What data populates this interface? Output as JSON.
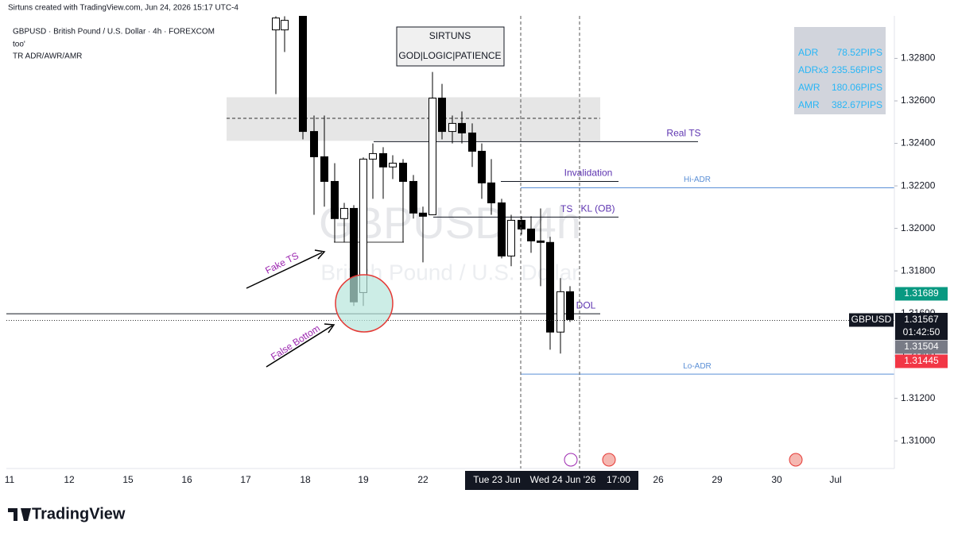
{
  "header": {
    "credit": "Sirtuns created with TradingView.com, Jun 24, 2026 15:17 UTC-4",
    "symbol": "GBPUSD · British Pound / U.S. Dollar · 4h · FOREXCOM",
    "note": "too'",
    "indicator": "TR ADR/AWR/AMR"
  },
  "watermark": {
    "title": "GBPUSD, 4h",
    "subtitle": "British Pound / U.S. Dollar"
  },
  "brand_box": {
    "title": "SIRTUNS",
    "motto": "GOD|LOGIC|PATIENCE"
  },
  "adr_table": [
    [
      "ADR",
      "78.52PIPS"
    ],
    [
      "ADRx3",
      "235.56PIPS"
    ],
    [
      "AWR",
      "180.06PIPS"
    ],
    [
      "AMR",
      "382.67PIPS"
    ]
  ],
  "currency": "USD",
  "chart_data": {
    "type": "candlestick",
    "ylim": [
      1.3087,
      1.33
    ],
    "yticks": [
      {
        "value": 1.31,
        "label": "1.31000"
      },
      {
        "value": 1.312,
        "label": "1.31200"
      },
      {
        "value": 1.314,
        "label": "1.31400"
      },
      {
        "value": 1.316,
        "label": "1.31600"
      },
      {
        "value": 1.318,
        "label": "1.31800"
      },
      {
        "value": 1.32,
        "label": "1.32000"
      },
      {
        "value": 1.322,
        "label": "1.32200"
      },
      {
        "value": 1.324,
        "label": "1.32400"
      },
      {
        "value": 1.326,
        "label": "1.32600"
      },
      {
        "value": 1.328,
        "label": "1.32800"
      }
    ],
    "xticks": [
      "11",
      "12",
      "15",
      "16",
      "17",
      "18",
      "19",
      "22",
      "26",
      "29",
      "30",
      "Jul"
    ],
    "candles": [
      {
        "open": 1.32934,
        "high": 1.32998,
        "low": 1.32632,
        "close": 1.3299
      },
      {
        "open": 1.32934,
        "high": 1.32998,
        "low": 1.3283,
        "close": 1.32979
      },
      {
        "open": 1.32998,
        "high": 1.32998,
        "low": 1.32419,
        "close": 1.32456
      },
      {
        "open": 1.32456,
        "high": 1.32531,
        "low": 1.32064,
        "close": 1.32337
      },
      {
        "open": 1.32337,
        "high": 1.32531,
        "low": 1.32102,
        "close": 1.32221
      },
      {
        "open": 1.32221,
        "high": 1.32307,
        "low": 1.31934,
        "close": 1.32046
      },
      {
        "open": 1.32046,
        "high": 1.3212,
        "low": 1.31934,
        "close": 1.32094
      },
      {
        "open": 1.32094,
        "high": 1.32109,
        "low": 1.31635,
        "close": 1.31654
      },
      {
        "open": 1.31698,
        "high": 1.32334,
        "low": 1.31635,
        "close": 1.32326
      },
      {
        "open": 1.32326,
        "high": 1.324,
        "low": 1.32139,
        "close": 1.32352
      },
      {
        "open": 1.32352,
        "high": 1.32382,
        "low": 1.32139,
        "close": 1.32289
      },
      {
        "open": 1.32289,
        "high": 1.32344,
        "low": 1.32232,
        "close": 1.32307
      },
      {
        "open": 1.32307,
        "high": 1.32326,
        "low": 1.31934,
        "close": 1.32221
      },
      {
        "open": 1.32221,
        "high": 1.32251,
        "low": 1.32046,
        "close": 1.32072
      },
      {
        "open": 1.32072,
        "high": 1.32102,
        "low": 1.3184,
        "close": 1.32057
      },
      {
        "open": 1.32064,
        "high": 1.32736,
        "low": 1.32064,
        "close": 1.32613
      },
      {
        "open": 1.32613,
        "high": 1.3268,
        "low": 1.32419,
        "close": 1.32456
      },
      {
        "open": 1.32456,
        "high": 1.32531,
        "low": 1.324,
        "close": 1.32494
      },
      {
        "open": 1.32494,
        "high": 1.3255,
        "low": 1.324,
        "close": 1.32449
      },
      {
        "open": 1.32449,
        "high": 1.32494,
        "low": 1.32289,
        "close": 1.32363
      },
      {
        "open": 1.32363,
        "high": 1.324,
        "low": 1.32139,
        "close": 1.32214
      },
      {
        "open": 1.32214,
        "high": 1.32326,
        "low": 1.32064,
        "close": 1.3212
      },
      {
        "open": 1.3212,
        "high": 1.32139,
        "low": 1.31859,
        "close": 1.3187
      },
      {
        "open": 1.3187,
        "high": 1.32064,
        "low": 1.31822,
        "close": 1.32038
      },
      {
        "open": 1.32038,
        "high": 1.32057,
        "low": 1.31971,
        "close": 1.31997
      },
      {
        "open": 1.31997,
        "high": 1.32057,
        "low": 1.31885,
        "close": 1.31941
      },
      {
        "open": 1.31941,
        "high": 1.32094,
        "low": 1.31728,
        "close": 1.31934
      },
      {
        "open": 1.31934,
        "high": 1.3196,
        "low": 1.31429,
        "close": 1.31512
      },
      {
        "open": 1.31512,
        "high": 1.31766,
        "low": 1.31411,
        "close": 1.31702
      },
      {
        "open": 1.31702,
        "high": 1.31728,
        "low": 1.3156,
        "close": 1.31571
      }
    ],
    "levels": [
      {
        "label": "Real TS",
        "value": 1.32408,
        "color": "#131722"
      },
      {
        "label": "Invalidation",
        "value": 1.32221,
        "color": "#131722"
      },
      {
        "label": "Hi-ADR",
        "value": 1.32191,
        "color": "#5b8fd6"
      },
      {
        "label": "KL (OB)",
        "value": 1.32053,
        "color": "#131722"
      },
      {
        "label": "DOL",
        "value": 1.31598,
        "color": "#131722"
      },
      {
        "label": "Lo-ADR",
        "value": 1.31314,
        "color": "#5b8fd6"
      }
    ],
    "zone": {
      "top": 1.32617,
      "bottom": 1.32412,
      "mid": 1.32518
    },
    "ts_label": "TS",
    "annotations": [
      "Fake TS",
      "False Bottom"
    ],
    "price_labels": [
      {
        "value": 1.31689,
        "color": "#089981"
      },
      {
        "name": "GBPUSD",
        "value": 1.31567,
        "countdown": "01:42:50",
        "color": "#131722"
      },
      {
        "value": 1.31504,
        "color": "#787b86"
      },
      {
        "value": 1.31445,
        "color": "#f23645"
      }
    ],
    "crosshair": [
      "Tue 23 Jun",
      "Wed 24 Jun '26",
      "17:00"
    ],
    "logo": "TradingView"
  }
}
